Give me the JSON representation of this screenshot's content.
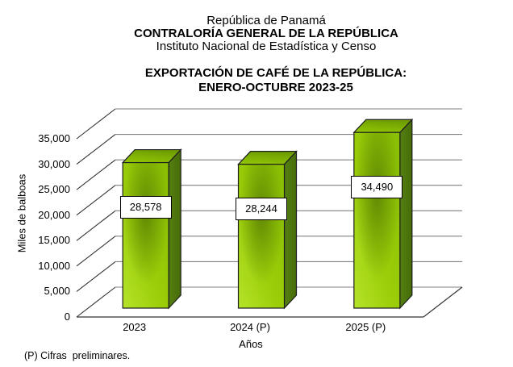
{
  "header": {
    "line1": "República de Panamá",
    "line2": "CONTRALORÍA GENERAL DE LA REPÚBLICA",
    "line3": "Instituto Nacional de Estadística y Censo"
  },
  "chart_data": {
    "type": "bar",
    "style": "3d-column",
    "title": "EXPORTACIÓN DE CAFÉ DE LA REPÚBLICA: ENERO-OCTUBRE 2023-25",
    "title_lines": [
      "EXPORTACIÓN DE CAFÉ DE LA REPÚBLICA:",
      "ENERO-OCTUBRE 2023-25"
    ],
    "categories": [
      "2023",
      "2024 (P)",
      "2025 (P)"
    ],
    "values": [
      28578,
      28244,
      34490
    ],
    "value_labels": [
      "28,578",
      "28,244",
      "34,490"
    ],
    "xlabel": "Años",
    "ylabel": "Miles de balboas",
    "ylim": [
      0,
      35000
    ],
    "ytick_step": 5000,
    "ytick_labels": [
      "0",
      "5,000",
      "10,000",
      "15,000",
      "20,000",
      "25,000",
      "30,000",
      "35,000"
    ],
    "grid": true,
    "legend": "none",
    "colors": {
      "bar_bright": "#b5e32a",
      "bar_mid": "#9bcd08",
      "bar_deep": "#8abf04",
      "bar_blob": "#2e4d00",
      "bar_side_light": "#557f12",
      "bar_side_dark": "#466c08",
      "bar_top_front": "#94c906",
      "bar_top_back": "#6f9e02",
      "outline": "#1f1f1f",
      "gridline": "#808080",
      "axis": "#333333",
      "label_box_bg": "#ffffff",
      "label_box_border": "#000000"
    }
  },
  "footer": {
    "note": "(P) Cifras  preliminares."
  }
}
